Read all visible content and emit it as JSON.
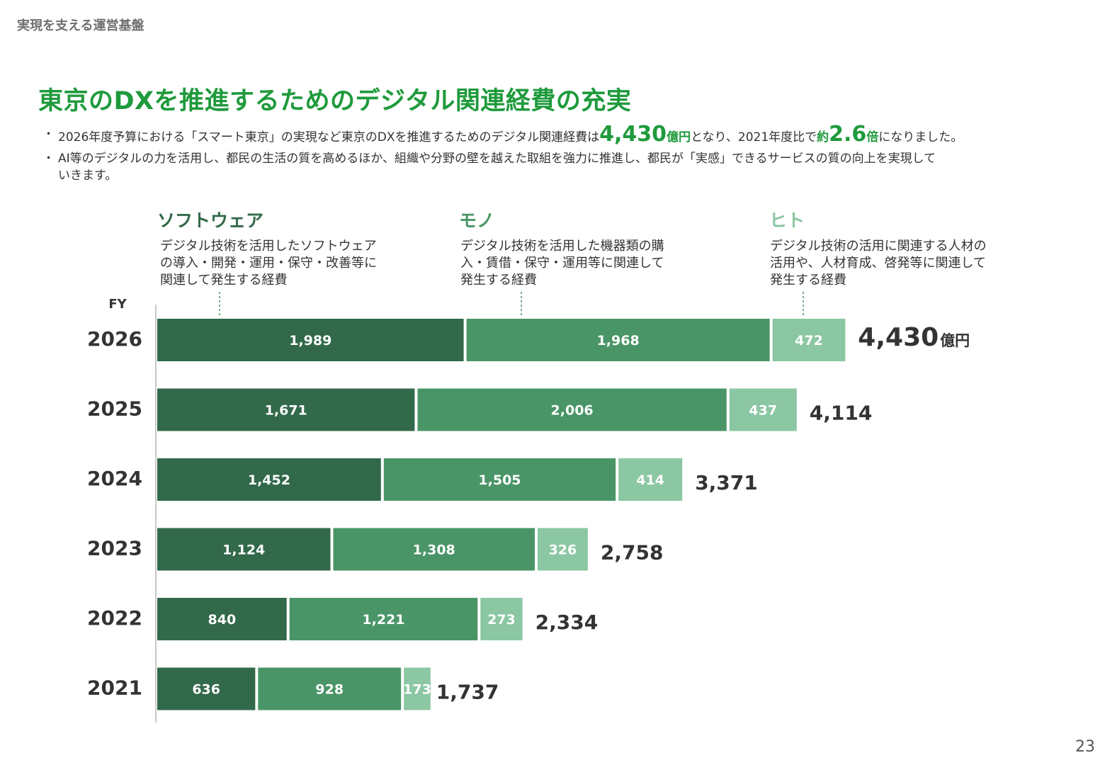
{
  "header": {
    "section_label": "実現を支える運営基盤"
  },
  "title": "東京のDXを推進するためのデジタル関連経費の充実",
  "bullets": {
    "b1": {
      "pre": "2026年度予算における「スマート東京」の実現など東京のDXを推進するためのデジタル関連経費は",
      "amount": "4,430",
      "amount_unit": "億円",
      "mid": "となり、2021年度比で",
      "ratio_prefix": "約",
      "ratio": "2.6",
      "ratio_unit": "倍",
      "post": "になりました。"
    },
    "b2": {
      "line1": "AI等のデジタルの力を活用し、都民の生活の質を高めるほか、組織や分野の壁を越えた取組を強力に推進し、都民が「実感」できるサービスの質の向上を実現して",
      "line2": "いきます。"
    }
  },
  "categories": [
    {
      "title": "ソフトウェア",
      "desc": [
        "デジタル技術を活用したソフトウェア",
        "の導入・開発・運用・保守・改善等に",
        "関連して発生する経費"
      ]
    },
    {
      "title": "モノ",
      "desc": [
        "デジタル技術を活用した機器類の購",
        "入・賃借・保守・運用等に関連して",
        "発生する経費"
      ]
    },
    {
      "title": "ヒト",
      "desc": [
        "デジタル技術の活用に関連する人材の",
        "活用や、人材育成、啓発等に関連して",
        "発生する経費"
      ]
    }
  ],
  "colors": {
    "software": "#32694a",
    "mono": "#4a9567",
    "hito": "#8bc7a2",
    "title_green": "#1f9a3c",
    "axis": "#c8c8c8"
  },
  "chart_data": {
    "type": "bar",
    "orientation": "horizontal",
    "stacked": true,
    "ylabel": "FY",
    "categories": [
      "2026",
      "2025",
      "2024",
      "2023",
      "2022",
      "2021"
    ],
    "series": [
      {
        "name": "ソフトウェア",
        "values": [
          1989,
          1671,
          1452,
          1124,
          840,
          636
        ]
      },
      {
        "name": "モノ",
        "values": [
          1968,
          2006,
          1505,
          1308,
          1221,
          928
        ]
      },
      {
        "name": "ヒト",
        "values": [
          472,
          437,
          414,
          326,
          273,
          173
        ]
      }
    ],
    "value_labels": [
      [
        "1,989",
        "1,968",
        "472"
      ],
      [
        "1,671",
        "2,006",
        "437"
      ],
      [
        "1,452",
        "1,505",
        "414"
      ],
      [
        "1,124",
        "1,308",
        "326"
      ],
      [
        "840",
        "1,221",
        "273"
      ],
      [
        "636",
        "928",
        "173"
      ]
    ],
    "totals": [
      4430,
      4114,
      3371,
      2758,
      2334,
      1737
    ],
    "total_labels": [
      "4,430",
      "4,114",
      "3,371",
      "2,758",
      "2,334",
      "1,737"
    ],
    "total_unit": "億円"
  },
  "page_number": "23"
}
